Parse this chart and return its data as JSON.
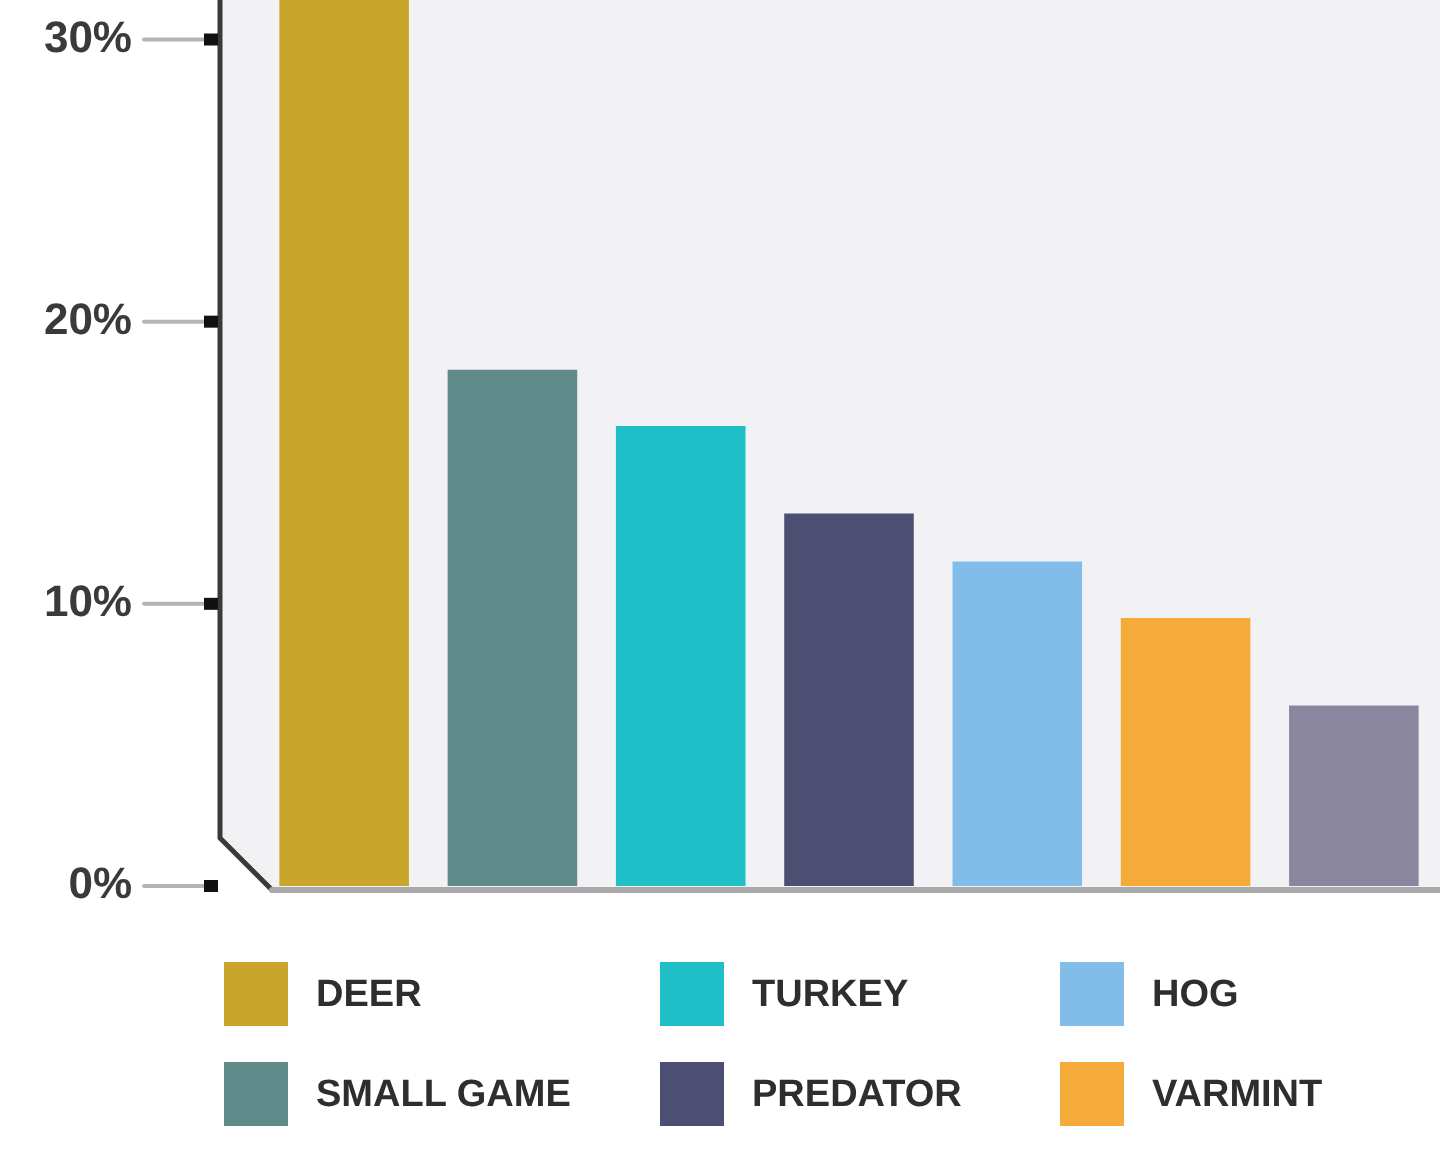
{
  "chart_data": {
    "type": "bar",
    "stacked": true,
    "categories": [
      null,
      null,
      null,
      null,
      null,
      null,
      null
    ],
    "series": [
      {
        "name": "DEER",
        "color": "#c9a52b",
        "values": [
          31.4,
          null,
          null,
          null,
          null,
          null,
          null
        ]
      },
      {
        "name": "SMALL GAME",
        "color": "#5f8b8a",
        "values": [
          null,
          18.3,
          null,
          null,
          null,
          null,
          null
        ]
      },
      {
        "name": "TURKEY",
        "color": "#1fbfc7",
        "values": [
          null,
          null,
          16.3,
          null,
          null,
          null,
          null
        ]
      },
      {
        "name": "PREDATOR",
        "color": "#4c4e72",
        "values": [
          null,
          null,
          null,
          13.2,
          null,
          null,
          null
        ]
      },
      {
        "name": "HOG",
        "color": "#82bde9",
        "values": [
          null,
          null,
          null,
          null,
          11.5,
          null,
          null
        ]
      },
      {
        "name": "VARMINT",
        "color": "#f5ab3a",
        "values": [
          null,
          null,
          null,
          null,
          null,
          9.5,
          null
        ]
      },
      {
        "color": "#8a86a0",
        "values": [
          null,
          null,
          null,
          null,
          null,
          null,
          6.4
        ]
      }
    ],
    "ylim": [
      0,
      31.4
    ],
    "yticks": [
      {
        "value": 0,
        "label": "0%"
      },
      {
        "value": 10,
        "label": "10%"
      },
      {
        "value": 20,
        "label": "20%"
      },
      {
        "value": 30,
        "label": "30%"
      }
    ],
    "legend": "bottom",
    "tick_labels": "y"
  }
}
